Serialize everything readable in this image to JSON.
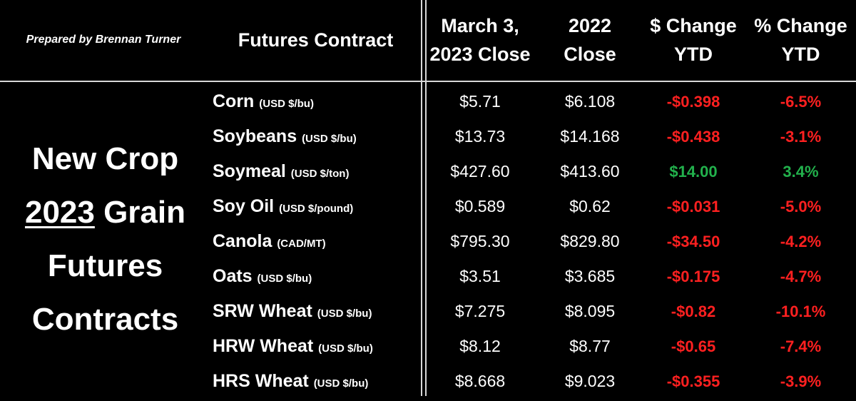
{
  "credit": "Prepared by Brennan Turner",
  "headers": {
    "contract": "Futures Contract",
    "close_2023": [
      "March 3,",
      "2023 Close"
    ],
    "close_2022": [
      "2022",
      "Close"
    ],
    "dollar_change": [
      "$ Change",
      "YTD"
    ],
    "percent_change": [
      "% Change",
      "YTD"
    ]
  },
  "side_title": {
    "line1": "New Crop",
    "line2_year": "2023",
    "line2_rest": " Grain",
    "line3": "Futures",
    "line4": "Contracts"
  },
  "colors": {
    "negative": "#ff2020",
    "positive": "#22b14c",
    "background": "#000000",
    "text": "#ffffff"
  },
  "rows": [
    {
      "name": "Corn",
      "unit": "(USD $/bu)",
      "close_2023": "$5.71",
      "close_2022": "$6.108",
      "dollar_change": "-$0.398",
      "percent_change": "-6.5%",
      "direction": "negative"
    },
    {
      "name": "Soybeans",
      "unit": "(USD $/bu)",
      "close_2023": "$13.73",
      "close_2022": "$14.168",
      "dollar_change": "-$0.438",
      "percent_change": "-3.1%",
      "direction": "negative"
    },
    {
      "name": "Soymeal",
      "unit": "(USD $/ton)",
      "close_2023": "$427.60",
      "close_2022": "$413.60",
      "dollar_change": "$14.00",
      "percent_change": "3.4%",
      "direction": "positive"
    },
    {
      "name": "Soy Oil",
      "unit": "(USD $/pound)",
      "close_2023": "$0.589",
      "close_2022": "$0.62",
      "dollar_change": "-$0.031",
      "percent_change": "-5.0%",
      "direction": "negative"
    },
    {
      "name": "Canola",
      "unit": "(CAD/MT)",
      "close_2023": "$795.30",
      "close_2022": "$829.80",
      "dollar_change": "-$34.50",
      "percent_change": "-4.2%",
      "direction": "negative"
    },
    {
      "name": "Oats",
      "unit": "(USD $/bu)",
      "close_2023": "$3.51",
      "close_2022": "$3.685",
      "dollar_change": "-$0.175",
      "percent_change": "-4.7%",
      "direction": "negative"
    },
    {
      "name": "SRW Wheat",
      "unit": "(USD $/bu)",
      "close_2023": "$7.275",
      "close_2022": "$8.095",
      "dollar_change": "-$0.82",
      "percent_change": "-10.1%",
      "direction": "negative"
    },
    {
      "name": "HRW Wheat",
      "unit": "(USD $/bu)",
      "close_2023": "$8.12",
      "close_2022": "$8.77",
      "dollar_change": "-$0.65",
      "percent_change": "-7.4%",
      "direction": "negative"
    },
    {
      "name": "HRS Wheat",
      "unit": "(USD $/bu)",
      "close_2023": "$8.668",
      "close_2022": "$9.023",
      "dollar_change": "-$0.355",
      "percent_change": "-3.9%",
      "direction": "negative"
    }
  ]
}
